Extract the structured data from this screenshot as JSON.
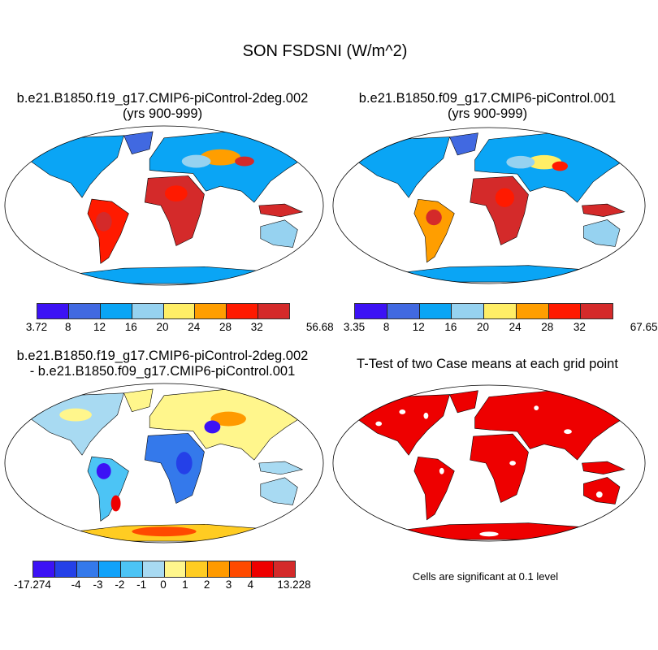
{
  "title": "SON FSDSNI (W/m^2)",
  "panels": [
    {
      "title1": "b.e21.B1850.f19_g17.CMIP6-piControl-2deg.002",
      "title2": "(yrs 900-999)"
    },
    {
      "title1": "b.e21.B1850.f09_g17.CMIP6-piControl.001",
      "title2": "(yrs 900-999)"
    },
    {
      "title1": "b.e21.B1850.f19_g17.CMIP6-piControl-2deg.002",
      "title2": "- b.e21.B1850.f09_g17.CMIP6-piControl.001"
    },
    {
      "title1": "T-Test of two Case means at each grid point"
    }
  ],
  "note": "Cells are significant at 0.1 level",
  "chart_data": [
    {
      "type": "heatmap",
      "name": "case1",
      "colorbar_labels": [
        "3.72",
        "8",
        "12",
        "16",
        "20",
        "24",
        "28",
        "32",
        "56.68"
      ],
      "colors": [
        "#3c12f5",
        "#4169e1",
        "#0aa5f5",
        "#96d2f0",
        "#ffee66",
        "#ff9e00",
        "#ff1a00",
        "#d42a2a"
      ]
    },
    {
      "type": "heatmap",
      "name": "case2",
      "colorbar_labels": [
        "3.35",
        "8",
        "12",
        "16",
        "20",
        "24",
        "28",
        "32",
        "67.65"
      ],
      "colors": [
        "#3c12f5",
        "#4169e1",
        "#0aa5f5",
        "#96d2f0",
        "#ffee66",
        "#ff9e00",
        "#ff1a00",
        "#d42a2a"
      ]
    },
    {
      "type": "heatmap",
      "name": "difference",
      "colorbar_labels": [
        "-17.274",
        "-4",
        "-3",
        "-2",
        "-1",
        "0",
        "1",
        "2",
        "3",
        "4",
        "13.228"
      ],
      "colors": [
        "#3c12f5",
        "#2440e8",
        "#3479eb",
        "#10a2fa",
        "#4cc4f5",
        "#a8daf2",
        "#fff68c",
        "#ffcc22",
        "#ff9a00",
        "#ff4a00",
        "#ee0000",
        "#d42a2a"
      ]
    },
    {
      "type": "heatmap",
      "name": "ttest",
      "colors": [
        "#ee0000",
        "#ffffff"
      ]
    }
  ]
}
